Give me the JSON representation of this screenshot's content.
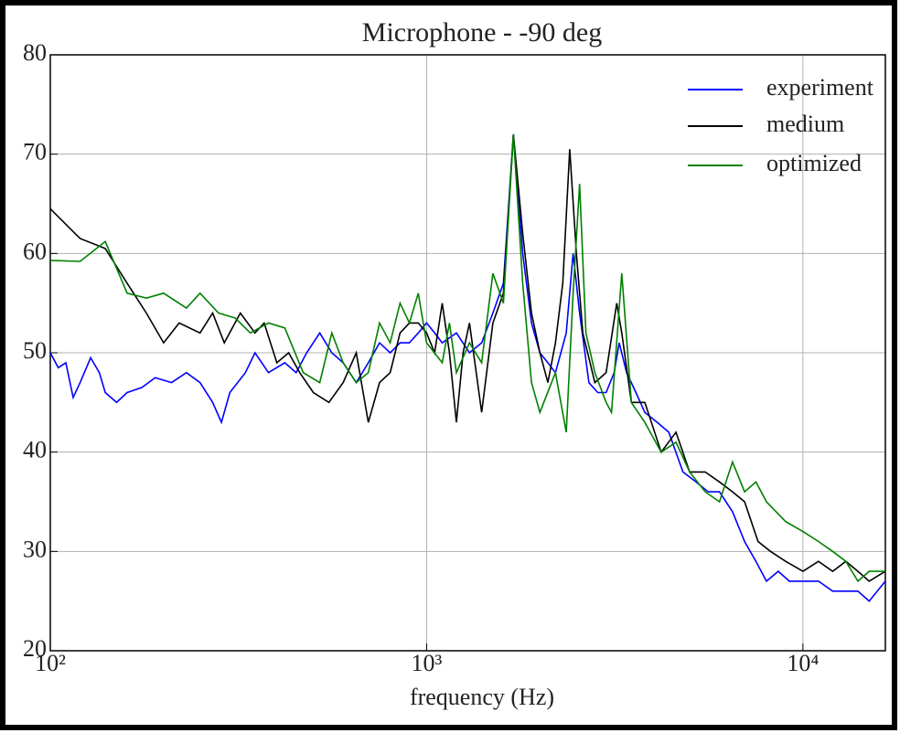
{
  "chart_data": {
    "type": "line",
    "title": "Microphone - -90 deg",
    "x_label": "frequency (Hz)",
    "x_scale": "log",
    "grid": true,
    "legend_position": "upper right",
    "xlim": [
      100,
      16560
    ],
    "ylim": [
      20,
      80
    ],
    "xticks": [
      {
        "value": 100,
        "label": "10²"
      },
      {
        "value": 1000,
        "label": "10³"
      },
      {
        "value": 10000,
        "label": "10⁴"
      }
    ],
    "yticks": [
      20,
      30,
      40,
      50,
      60,
      70,
      80
    ],
    "series": [
      {
        "name": "experiment",
        "color": "#0000ff",
        "x": [
          100,
          105,
          110,
          115,
          120,
          128,
          135,
          140,
          150,
          160,
          175,
          190,
          210,
          230,
          250,
          270,
          285,
          300,
          330,
          350,
          380,
          420,
          450,
          480,
          520,
          560,
          600,
          650,
          700,
          750,
          800,
          850,
          900,
          950,
          1000,
          1050,
          1100,
          1200,
          1300,
          1400,
          1500,
          1600,
          1700,
          1800,
          1900,
          2000,
          2100,
          2200,
          2350,
          2450,
          2550,
          2700,
          2850,
          3000,
          3150,
          3250,
          3400,
          3600,
          3800,
          4100,
          4400,
          4800,
          5200,
          5600,
          6000,
          6500,
          7000,
          7500,
          8000,
          8600,
          9200,
          10000,
          11000,
          12000,
          13000,
          14000,
          15000,
          16560
        ],
        "values": [
          50,
          48.5,
          49,
          45.5,
          47,
          49.5,
          48,
          46,
          45,
          46,
          46.5,
          47.5,
          47,
          48,
          47,
          45,
          43,
          46,
          48,
          50,
          48,
          49,
          48,
          50,
          52,
          50,
          49,
          47,
          49,
          51,
          50,
          51,
          51,
          52,
          53,
          52,
          51,
          52,
          50,
          51,
          54,
          57,
          72,
          60,
          53,
          50,
          49,
          48,
          52,
          60,
          54,
          47,
          46,
          46,
          48,
          51,
          48,
          46,
          44,
          43,
          42,
          38,
          37,
          36,
          36,
          34,
          31,
          29,
          27,
          28,
          27,
          27,
          27,
          26,
          26,
          26,
          25,
          27
        ]
      },
      {
        "name": "medium",
        "color": "#000000",
        "x": [
          100,
          120,
          140,
          160,
          180,
          200,
          220,
          250,
          270,
          290,
          320,
          350,
          370,
          400,
          430,
          460,
          500,
          550,
          600,
          650,
          700,
          750,
          800,
          850,
          900,
          950,
          1000,
          1050,
          1100,
          1150,
          1200,
          1250,
          1300,
          1400,
          1500,
          1600,
          1700,
          1800,
          1900,
          2000,
          2100,
          2200,
          2300,
          2400,
          2500,
          2600,
          2800,
          3000,
          3200,
          3300,
          3500,
          3800,
          4200,
          4600,
          5000,
          5500,
          6000,
          6500,
          7000,
          7600,
          8200,
          9000,
          10000,
          11000,
          12000,
          13000,
          14000,
          15000,
          16560
        ],
        "values": [
          64.5,
          61.5,
          60.5,
          57,
          54,
          51,
          53,
          52,
          54,
          51,
          54,
          52,
          53,
          49,
          50,
          48,
          46,
          45,
          47,
          50,
          43,
          47,
          48,
          52,
          53,
          53,
          52,
          50,
          55,
          50,
          43,
          50,
          53,
          44,
          53,
          56,
          72,
          62,
          54,
          50,
          47,
          51,
          57,
          70.5,
          60,
          52,
          47,
          48,
          55,
          52,
          45,
          45,
          40,
          42,
          38,
          38,
          37,
          36,
          35,
          31,
          30,
          29,
          28,
          29,
          28,
          29,
          28,
          27,
          28
        ]
      },
      {
        "name": "optimized",
        "color": "#008000",
        "x": [
          100,
          120,
          140,
          160,
          180,
          200,
          230,
          250,
          280,
          310,
          340,
          380,
          420,
          470,
          520,
          560,
          600,
          650,
          700,
          750,
          800,
          850,
          900,
          950,
          1000,
          1100,
          1150,
          1200,
          1300,
          1400,
          1500,
          1600,
          1700,
          1800,
          1900,
          2000,
          2200,
          2350,
          2450,
          2550,
          2650,
          2800,
          3000,
          3100,
          3300,
          3500,
          3800,
          4200,
          4600,
          5000,
          5500,
          6000,
          6500,
          7000,
          7500,
          8000,
          9000,
          10000,
          11000,
          12000,
          13000,
          14000,
          15000,
          16560
        ],
        "values": [
          59.3,
          59.2,
          61.2,
          56,
          55.5,
          56,
          54.5,
          56,
          54,
          53.5,
          52,
          53,
          52.5,
          48,
          47,
          52,
          49,
          47,
          48,
          53,
          51,
          55,
          53,
          56,
          51,
          49,
          53,
          48,
          51,
          49,
          58,
          55,
          72,
          57,
          47,
          44,
          48,
          42,
          56,
          67,
          52,
          48,
          45,
          44,
          58,
          45,
          43,
          40,
          41,
          38,
          36,
          35,
          39,
          36,
          37,
          35,
          33,
          32,
          31,
          30,
          29,
          27,
          28,
          28
        ]
      }
    ]
  }
}
